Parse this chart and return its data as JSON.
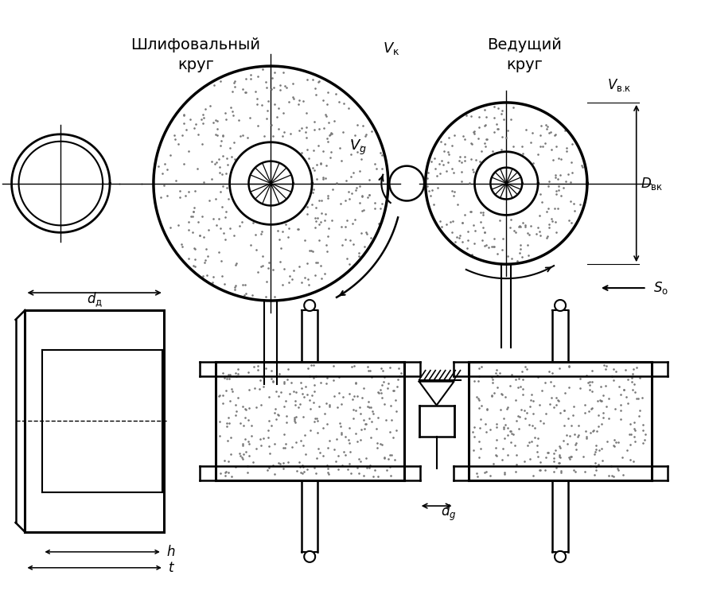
{
  "bg_color": "#ffffff",
  "line_color": "#000000",
  "labels": {
    "grinding_wheel_1": "Шлифовальный",
    "grinding_wheel_2": "круг",
    "driving_wheel_1": "Ведущий",
    "driving_wheel_2": "круг",
    "Vk": "$V_{\\mathregular{\\u043a}}$",
    "Vg": "$V_{g}$",
    "Vvk": "$V_{\\mathregular{\\u0432.\\u043a}}$",
    "Dvk": "$D_{\\mathregular{\\u0432\\u043a}}$",
    "So": "$S_{\\mathregular{o}}$",
    "dd": "$d_{\\mathregular{\\u0434}}$",
    "h": "$h$",
    "t": "$t$",
    "dg": "$d_{g}$"
  }
}
